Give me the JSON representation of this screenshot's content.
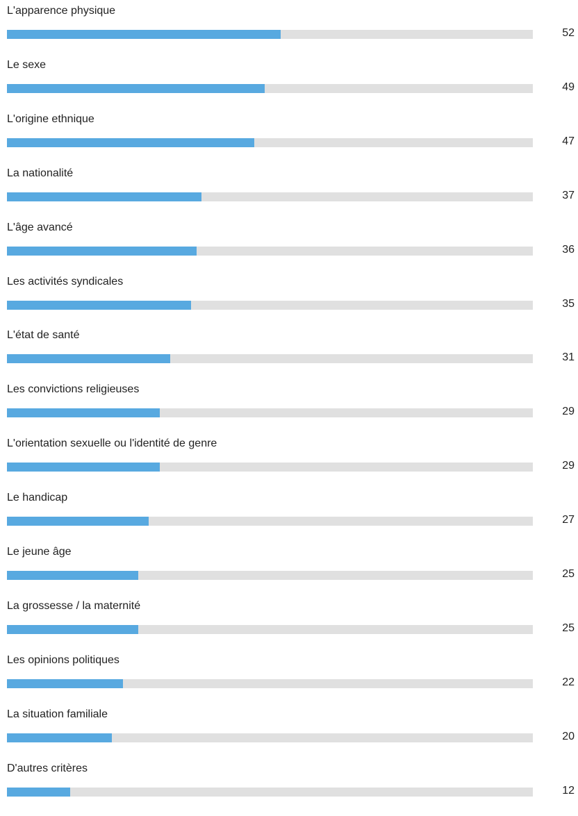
{
  "chart_data": {
    "type": "bar",
    "orientation": "horizontal",
    "categories": [
      "L'apparence physique",
      "Le sexe",
      "L'origine ethnique",
      "La nationalité",
      "L'âge avancé",
      "Les activités syndicales",
      "L'état de santé",
      "Les convictions religieuses",
      "L'orientation sexuelle ou l'identité de genre",
      "Le handicap",
      "Le jeune âge",
      "La grossesse / la maternité",
      "Les opinions politiques",
      "La situation familiale",
      "D'autres critères"
    ],
    "values": [
      52,
      49,
      47,
      37,
      36,
      35,
      31,
      29,
      29,
      27,
      25,
      25,
      22,
      20,
      12
    ],
    "title": "",
    "xlabel": "",
    "ylabel": "",
    "xlim": [
      0,
      100
    ],
    "grid": false,
    "legend": "none",
    "colors": {
      "bar": "#58a9e0",
      "track": "#e0e0e0",
      "text": "#222222"
    }
  }
}
